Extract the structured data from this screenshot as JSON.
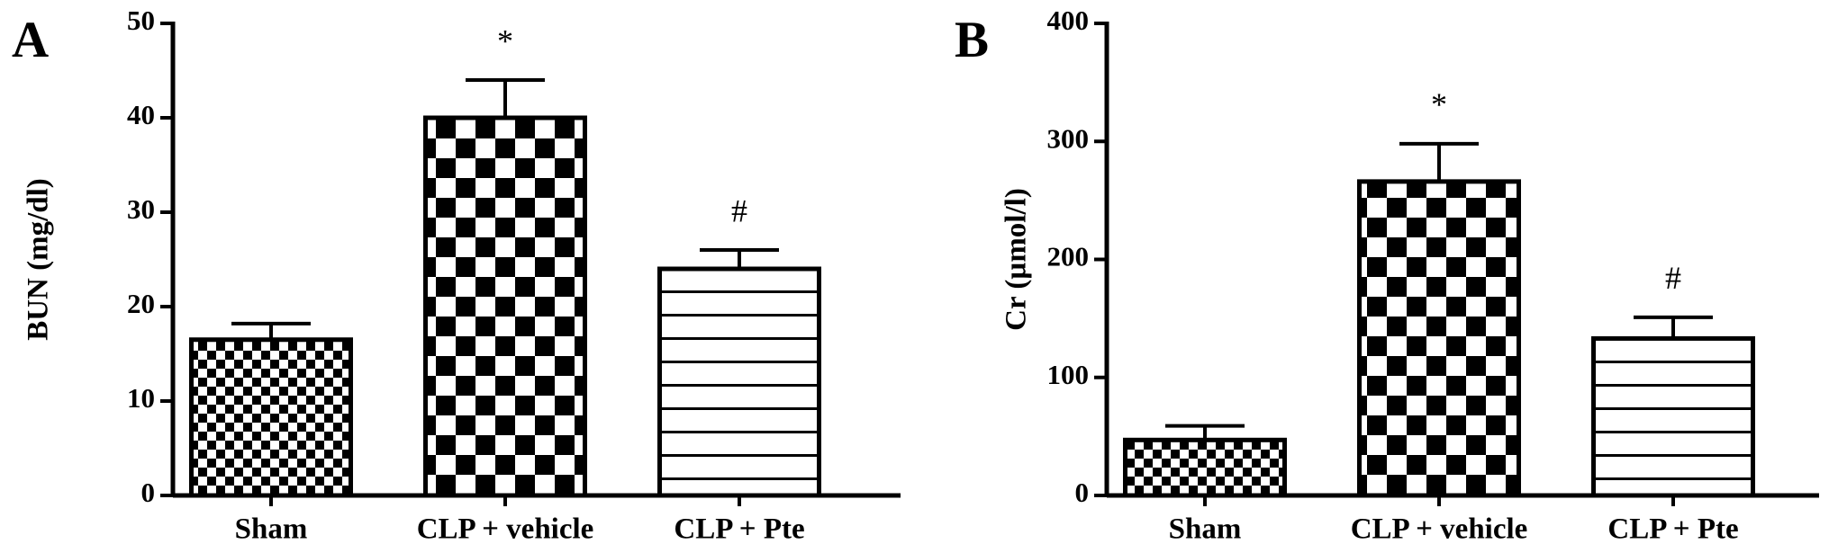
{
  "chart_data": [
    {
      "type": "bar",
      "panel_label": "A",
      "y_label": "BUN (mg/dl)",
      "categories": [
        "Sham",
        "CLP + vehicle",
        "CLP + Pte"
      ],
      "values": [
        16.5,
        40,
        24
      ],
      "errors": [
        1.7,
        4,
        2
      ],
      "markers": [
        null,
        "*",
        "#"
      ],
      "patterns": [
        "small-checker",
        "large-checker",
        "horizontal-lines"
      ],
      "ylim": [
        0,
        50
      ],
      "yticks": [
        0,
        10,
        20,
        30,
        40,
        50
      ]
    },
    {
      "type": "bar",
      "panel_label": "B",
      "y_label": "Cr (µmol/l)",
      "categories": [
        "Sham",
        "CLP + vehicle",
        "CLP + Pte"
      ],
      "values": [
        47,
        266,
        133
      ],
      "errors": [
        12,
        32,
        18
      ],
      "markers": [
        null,
        "*",
        "#"
      ],
      "patterns": [
        "small-checker",
        "large-checker",
        "horizontal-lines"
      ],
      "ylim": [
        0,
        400
      ],
      "yticks": [
        0,
        100,
        200,
        300,
        400
      ]
    }
  ]
}
